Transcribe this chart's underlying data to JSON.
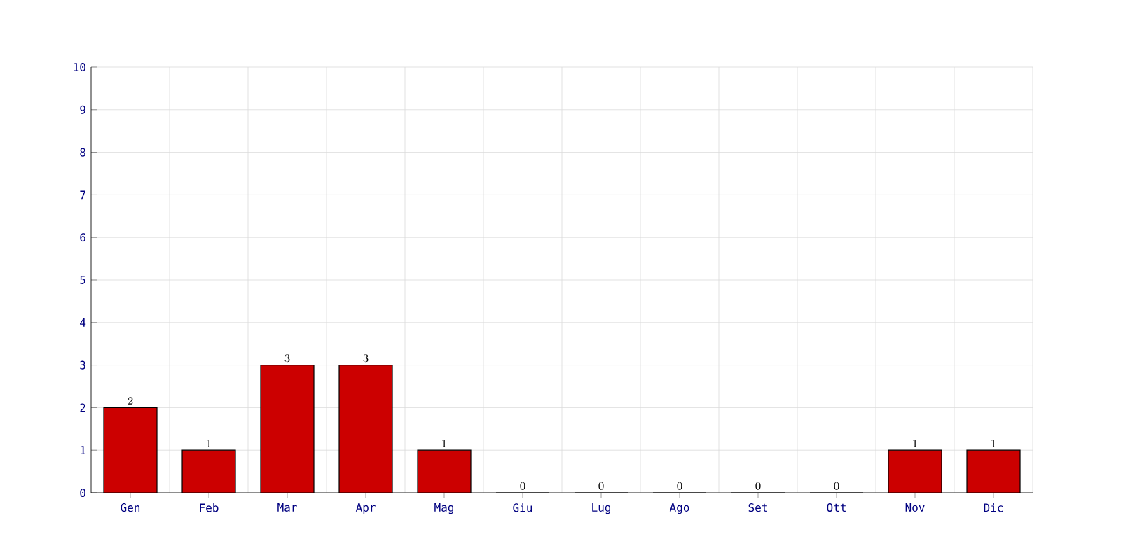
{
  "chart_data": {
    "type": "bar",
    "categories": [
      "Gen",
      "Feb",
      "Mar",
      "Apr",
      "Mag",
      "Giu",
      "Lug",
      "Ago",
      "Set",
      "Ott",
      "Nov",
      "Dic"
    ],
    "values": [
      2,
      1,
      3,
      3,
      1,
      0,
      0,
      0,
      0,
      0,
      1,
      1
    ],
    "color": "#cc0000",
    "ylim": [
      0,
      10
    ],
    "yticks": [
      0,
      1,
      2,
      3,
      4,
      5,
      6,
      7,
      8,
      9,
      10
    ],
    "grid": true,
    "data_labels": true
  }
}
